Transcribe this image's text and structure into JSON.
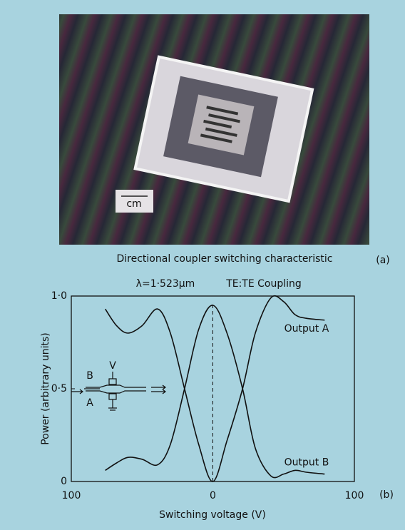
{
  "photo": {
    "scale_label": "cm",
    "caption": "Directional coupler switching characteristic",
    "panel": "(a)"
  },
  "chart_data": {
    "type": "line",
    "title": "λ=1·523μm",
    "subtitle": "TE:TE Coupling",
    "panel": "(b)",
    "x_label": "Switching voltage (V)",
    "y_label": "Power (arbitrary units)",
    "annotations": [
      "V",
      "B",
      "A"
    ],
    "x": [
      -76,
      -68,
      -60,
      -50,
      -39,
      -30,
      -20,
      -10,
      0,
      10,
      21,
      30,
      41,
      50,
      58,
      66,
      79
    ],
    "series": [
      {
        "name": "Output A",
        "color": "#111111",
        "values": [
          0.93,
          0.84,
          0.8,
          0.84,
          0.93,
          0.8,
          0.5,
          0.2,
          0.0,
          0.22,
          0.5,
          0.8,
          0.99,
          0.97,
          0.9,
          0.88,
          0.87
        ]
      },
      {
        "name": "Output B",
        "color": "#111111",
        "values": [
          0.06,
          0.1,
          0.13,
          0.12,
          0.09,
          0.2,
          0.5,
          0.82,
          0.95,
          0.8,
          0.5,
          0.18,
          0.03,
          0.04,
          0.06,
          0.05,
          0.04
        ]
      }
    ],
    "xlim": [
      -100,
      100
    ],
    "xticks": [
      {
        "value": -100,
        "label": "100"
      },
      0,
      {
        "value": 100,
        "label": "100"
      }
    ],
    "ylim": [
      0,
      1
    ],
    "yticks": [
      0,
      {
        "value": 0.5,
        "label": "0·5"
      },
      {
        "value": 1,
        "label": "1·0"
      }
    ],
    "grid": false
  }
}
